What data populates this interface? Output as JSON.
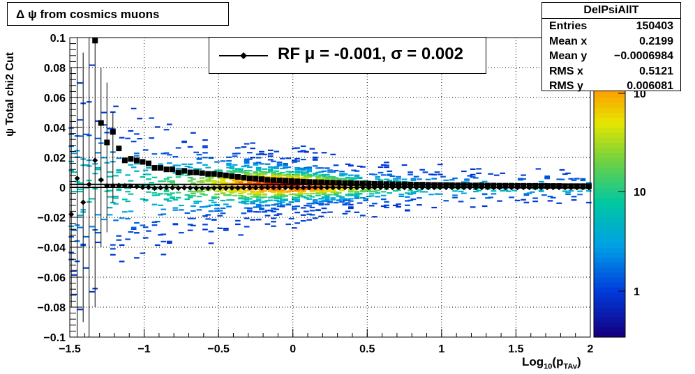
{
  "title": "Δ ψ from cosmics muons",
  "stats": {
    "name": "DelPsiAllT",
    "rows": [
      {
        "label": "Entries",
        "value": "150403"
      },
      {
        "label": "Mean x",
        "value": "0.2199"
      },
      {
        "label": "Mean y",
        "value": "−0.0006984"
      },
      {
        "label": "RMS x",
        "value": "0.5121"
      },
      {
        "label": "RMS y",
        "value": "0.006081"
      }
    ]
  },
  "legend": {
    "label": "RF μ = -0.001, σ =   0.002"
  },
  "colorbar": {
    "tick_labels": [
      "1",
      "10",
      "10"
    ]
  },
  "chart_data": {
    "type": "heatmap",
    "title": "Δ ψ from cosmics muons",
    "xlabel": "Log10(pTAv)",
    "xlabel_main": "Log",
    "xlabel_sub1": "10",
    "xlabel_mid": "(p",
    "xlabel_sub2": "TAv",
    "xlabel_end": ")",
    "ylabel": "ψ  Total chi2 Cut",
    "xlim": [
      -1.5,
      2.0
    ],
    "ylim": [
      -0.1,
      0.1
    ],
    "x_ticks": [
      -1.5,
      -1,
      -0.5,
      0,
      0.5,
      1,
      1.5,
      2
    ],
    "x_tick_labels": [
      "−1.5",
      "−1",
      "−0.5",
      "0",
      "0.5",
      "1",
      "1.5",
      "2"
    ],
    "y_ticks": [
      -0.1,
      -0.08,
      -0.06,
      -0.04,
      -0.02,
      0,
      0.02,
      0.04,
      0.06,
      0.08,
      0.1
    ],
    "y_tick_labels": [
      "−0.1",
      "−0.08",
      "−0.06",
      "−0.04",
      "−0.02",
      "0",
      "0.02",
      "0.04",
      "0.06",
      "0.08",
      "0.1"
    ],
    "grid": true,
    "z_scale": "log",
    "series": [
      {
        "name": "profile_mean",
        "marker": "square",
        "x": [
          -1.33,
          -1.29,
          -1.25,
          -1.21,
          -1.17,
          -1.13,
          -1.09,
          -1.05,
          -1.01,
          -0.97,
          -0.93,
          -0.89,
          -0.85,
          -0.81,
          -0.77,
          -0.73,
          -0.69,
          -0.65,
          -0.61,
          -0.57,
          -0.53,
          -0.49,
          -0.45,
          -0.41,
          -0.37,
          -0.33,
          -0.29,
          -0.25,
          -0.21,
          -0.17,
          -0.13,
          -0.09,
          -0.05,
          -0.01,
          0.03,
          0.07,
          0.11,
          0.15,
          0.19,
          0.23,
          0.27,
          0.31,
          0.35,
          0.39,
          0.43,
          0.47,
          0.51,
          0.55,
          0.59,
          0.63,
          0.67,
          0.71,
          0.75,
          0.79,
          0.83,
          0.87,
          0.91,
          0.95,
          0.99,
          1.03,
          1.07,
          1.11,
          1.15,
          1.19,
          1.23,
          1.27,
          1.31,
          1.35,
          1.39,
          1.43,
          1.47,
          1.51,
          1.55,
          1.59,
          1.63,
          1.67,
          1.71,
          1.75,
          1.79,
          1.83,
          1.87,
          1.91,
          1.95,
          1.99
        ],
        "y": [
          0.098,
          0.043,
          0.03,
          0.037,
          0.026,
          0.018,
          0.019,
          0.018,
          0.017,
          0.016,
          0.013,
          0.013,
          0.012,
          0.012,
          0.01,
          0.011,
          0.01,
          0.01,
          0.0095,
          0.009,
          0.009,
          0.0085,
          0.008,
          0.0075,
          0.007,
          0.0065,
          0.006,
          0.0058,
          0.0055,
          0.005,
          0.0048,
          0.0046,
          0.0044,
          0.0042,
          0.004,
          0.0038,
          0.0036,
          0.0035,
          0.0034,
          0.0032,
          0.0031,
          0.003,
          0.0029,
          0.0028,
          0.0027,
          0.0026,
          0.0025,
          0.0024,
          0.0023,
          0.0022,
          0.0021,
          0.002,
          0.002,
          0.0019,
          0.0018,
          0.0018,
          0.0017,
          0.0016,
          0.0016,
          0.0015,
          0.0015,
          0.0014,
          0.0014,
          0.0013,
          0.0013,
          0.0012,
          0.0012,
          0.0012,
          0.0011,
          0.0011,
          0.0011,
          0.001,
          0.001,
          0.001,
          0.001,
          0.0009,
          0.0009,
          0.0009,
          0.0009,
          0.0008,
          0.0008,
          0.0008,
          0.0008,
          0.0008
        ]
      },
      {
        "name": "profile_rf",
        "marker": "diamond",
        "x": [
          -1.49,
          -1.45,
          -1.41,
          -1.37,
          -1.33,
          -1.29,
          -1.25,
          -1.21,
          -1.17,
          -1.13,
          -1.09,
          -1.05,
          -1.01,
          -0.97,
          -0.93,
          -0.89,
          -0.85,
          -0.81,
          -0.77,
          -0.73,
          -0.69,
          -0.65,
          -0.61,
          -0.57,
          -0.53,
          -0.49,
          -0.45,
          -0.41,
          -0.37,
          -0.33,
          -0.29,
          -0.25,
          -0.21,
          -0.17,
          -0.13,
          -0.09,
          -0.05,
          -0.01,
          0.03,
          0.07,
          0.11,
          0.15,
          0.19,
          0.23,
          0.27,
          0.31,
          0.35,
          0.39,
          0.43,
          0.47,
          0.51,
          0.55,
          0.59,
          0.63,
          0.67,
          0.71,
          0.75,
          0.79,
          0.83,
          0.87,
          0.91,
          0.95,
          0.99,
          1.03,
          1.07,
          1.11,
          1.15,
          1.19,
          1.23,
          1.27,
          1.31,
          1.35,
          1.39,
          1.43,
          1.47,
          1.51,
          1.55,
          1.59,
          1.63,
          1.67,
          1.71,
          1.75,
          1.79,
          1.83,
          1.87,
          1.91,
          1.95,
          1.99
        ],
        "y": [
          -0.018,
          0.006,
          -0.01,
          0.002,
          0.018,
          0.005,
          0.001,
          0.001,
          0.0012,
          0.001,
          0.0008,
          0.0005,
          0.0,
          0.0,
          -0.0005,
          -0.0003,
          -0.0002,
          -0.0003,
          -0.0005,
          -0.0003,
          -0.0004,
          -0.0006,
          -0.0005,
          -0.0006,
          -0.0005,
          -0.0004,
          -0.0005,
          -0.0004,
          -0.0004,
          -0.0003,
          -0.0003,
          -0.0003,
          -0.0003,
          -0.0002,
          -0.0002,
          -0.0002,
          -0.0002,
          -0.0002,
          -0.0002,
          -0.0002,
          -0.0002,
          -0.0001,
          -0.0001,
          -0.0001,
          -0.0001,
          -0.0001,
          -0.0001,
          -0.0001,
          -0.0001,
          -0.0001,
          -0.0001,
          -0.0001,
          -0.0001,
          -0.0001,
          -0.0001,
          -0.0001,
          -0.0001,
          -0.0001,
          -0.0001,
          -0.0001,
          -0.0001,
          -0.0001,
          -0.0001,
          -0.0001,
          -0.0001,
          -0.0001,
          -0.0001,
          -0.0001,
          -0.0001,
          -0.0001,
          -0.0001,
          -0.0001,
          -0.0001,
          -0.0001,
          -0.0001,
          -0.0001,
          -0.0001,
          -0.0001,
          -0.0001,
          -0.0001,
          -0.0001,
          -0.0001,
          -0.0001,
          -0.0001,
          -0.0001,
          -0.0001,
          -0.0001,
          -0.0001
        ]
      }
    ],
    "fit_lines_y": [
      0.002,
      0.0
    ]
  }
}
